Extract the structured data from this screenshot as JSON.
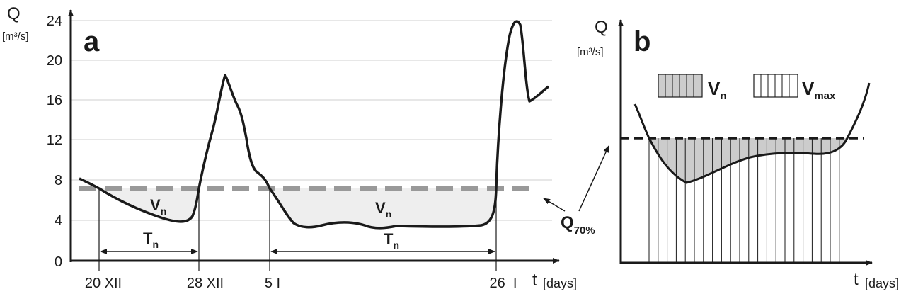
{
  "panel_a": {
    "letter": "a",
    "y_axis_label": "Q",
    "y_unit": "[m³/s]",
    "x_axis_label": "t",
    "x_unit": "[days]",
    "y_ticks": [
      "0",
      "4",
      "8",
      "12",
      "16",
      "20",
      "24"
    ],
    "x_ticks": [
      "20 XII",
      "28 XII",
      "5 I",
      "26  I"
    ],
    "deficit_label_1": "V",
    "deficit_label_1_sub": "n",
    "deficit_label_2": "V",
    "deficit_label_2_sub": "n",
    "duration_label_1": "T",
    "duration_label_1_sub": "n",
    "duration_label_2": "T",
    "duration_label_2_sub": "n",
    "threshold_label": "Q",
    "threshold_label_sub": "70%"
  },
  "panel_b": {
    "letter": "b",
    "y_axis_label": "Q",
    "y_unit": "[m³/s]",
    "x_axis_label": "t",
    "x_unit": "[days]",
    "legend": [
      {
        "label": "V",
        "sub": "n",
        "style": "gray-hatched"
      },
      {
        "label": "V",
        "sub": "max",
        "style": "white-hatched"
      }
    ]
  },
  "colors": {
    "line": "#1a1a1a",
    "threshold_dash": "#999999",
    "deficit_fill": "#eeeeee",
    "deficit_fill_b": "#cccccc",
    "grid": "#cfcfcf"
  }
}
